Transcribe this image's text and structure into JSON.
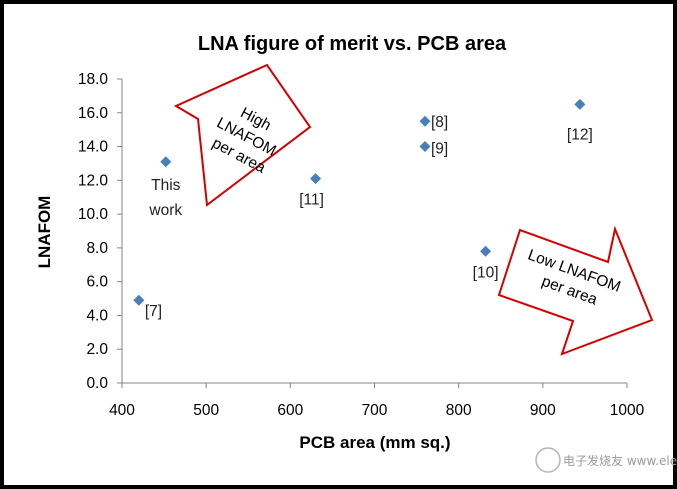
{
  "chart_data": {
    "type": "scatter",
    "title": "LNA figure of merit vs. PCB area",
    "xlabel": "PCB area (mm sq.)",
    "ylabel": "LNAFOM",
    "xlim": [
      400,
      1000
    ],
    "ylim": [
      0,
      18
    ],
    "x_ticks": [
      400,
      500,
      600,
      700,
      800,
      900,
      1000
    ],
    "y_ticks": [
      "0.0",
      "2.0",
      "4.0",
      "6.0",
      "8.0",
      "10.0",
      "12.0",
      "14.0",
      "16.0",
      "18.0"
    ],
    "grid": false,
    "legend": "none",
    "marker": "diamond",
    "marker_color": "#4a7ebb",
    "points": [
      {
        "x": 452,
        "y": 13.1,
        "label": "This work"
      },
      {
        "x": 420,
        "y": 4.9,
        "label": "[7]"
      },
      {
        "x": 760,
        "y": 15.5,
        "label": "[8]"
      },
      {
        "x": 760,
        "y": 14.0,
        "label": "[9]"
      },
      {
        "x": 832,
        "y": 7.8,
        "label": "[10]"
      },
      {
        "x": 630,
        "y": 12.1,
        "label": "[11]"
      },
      {
        "x": 944,
        "y": 16.5,
        "label": "[12]"
      }
    ],
    "annotations": [
      {
        "text": "High LNAFOM per area",
        "lines": [
          "High",
          "LNAFOM",
          "per area"
        ],
        "shape": "arrow-up-left",
        "border_color": "#d40000"
      },
      {
        "text": "Low LNAFOM per area",
        "lines": [
          "Low LNAFOM",
          "per area"
        ],
        "shape": "arrow-down-right",
        "border_color": "#d40000"
      }
    ]
  },
  "watermark": {
    "text": "电子发烧友 www.elecfans.com"
  }
}
